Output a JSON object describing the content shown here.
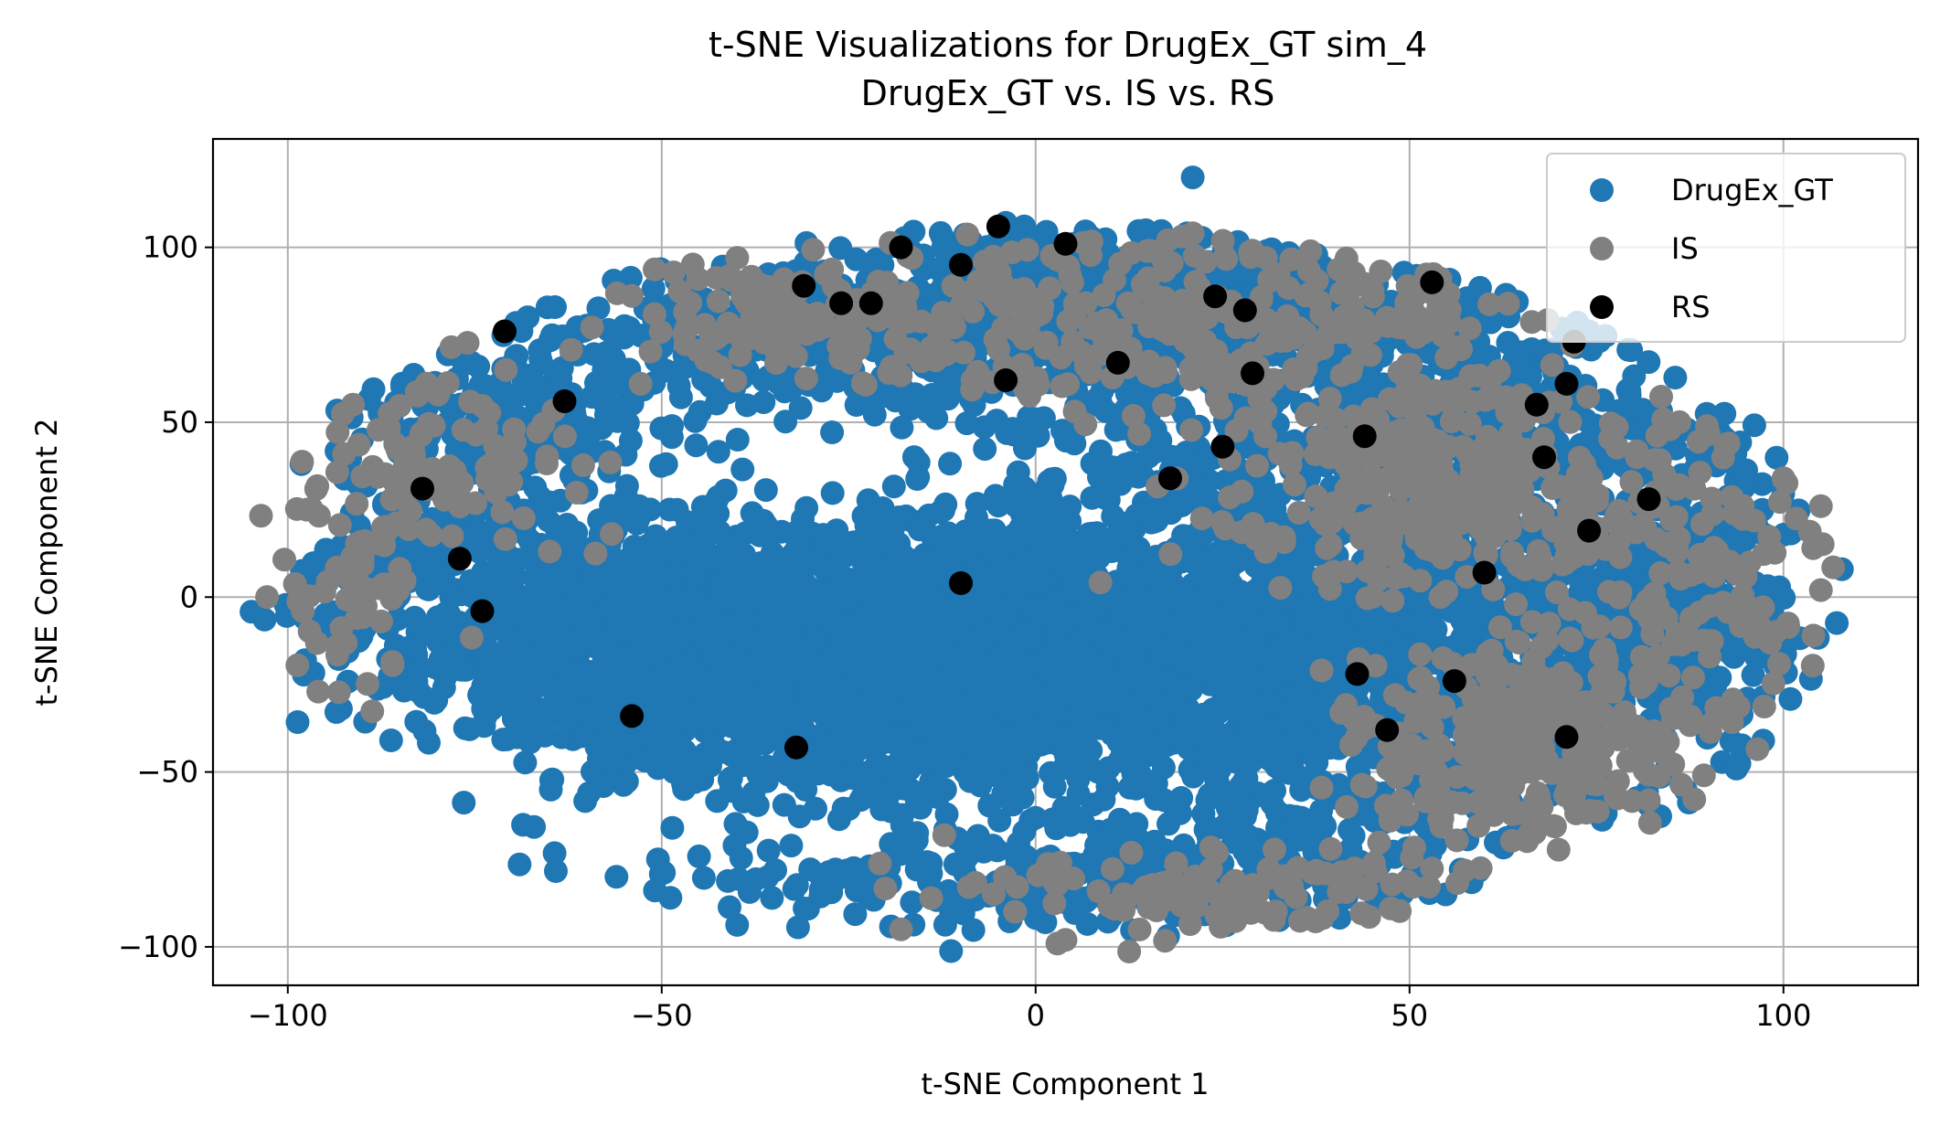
{
  "chart_data": {
    "type": "scatter",
    "title": "t-SNE Visualizations for DrugEx_GT sim_4",
    "subtitle": "DrugEx_GT vs. IS vs. RS",
    "xlabel": "t-SNE Component 1",
    "ylabel": "t-SNE Component 2",
    "xlim": [
      -110,
      118
    ],
    "ylim": [
      -111,
      131
    ],
    "xticks": [
      -100,
      -50,
      0,
      50,
      100
    ],
    "yticks": [
      -100,
      -50,
      0,
      50,
      100
    ],
    "xtick_labels": [
      "−100",
      "−50",
      "0",
      "50",
      "100"
    ],
    "ytick_labels": [
      "−100",
      "−50",
      "0",
      "50",
      "100"
    ],
    "grid": true,
    "legend_position": "top-right",
    "series": [
      {
        "name": "DrugEx_GT",
        "color": "#1f77b4",
        "clusters": [
          {
            "cx": -22,
            "cy": -18,
            "sx": 24,
            "sy": 20,
            "n": 1500
          },
          {
            "cx": 10,
            "cy": -15,
            "sx": 18,
            "sy": 22,
            "n": 900
          },
          {
            "cx": -55,
            "cy": -10,
            "sx": 13,
            "sy": 18,
            "n": 500
          },
          {
            "cx": -80,
            "cy": 5,
            "sx": 10,
            "sy": 20,
            "n": 200
          },
          {
            "cx": 40,
            "cy": -20,
            "sx": 12,
            "sy": 25,
            "n": 600
          },
          {
            "cx": 75,
            "cy": -20,
            "sx": 14,
            "sy": 20,
            "n": 450
          },
          {
            "cx": 88,
            "cy": 15,
            "sx": 8,
            "sy": 20,
            "n": 200
          },
          {
            "cx": 30,
            "cy": 55,
            "sx": 22,
            "sy": 30,
            "n": 550
          },
          {
            "cx": -20,
            "cy": 78,
            "sx": 22,
            "sy": 13,
            "n": 400
          },
          {
            "cx": 10,
            "cy": 88,
            "sx": 20,
            "sy": 12,
            "n": 300
          },
          {
            "cx": -68,
            "cy": 55,
            "sx": 12,
            "sy": 14,
            "n": 180
          },
          {
            "cx": 62,
            "cy": 55,
            "sx": 12,
            "sy": 14,
            "n": 220
          },
          {
            "cx": 10,
            "cy": -80,
            "sx": 28,
            "sy": 8,
            "n": 300
          }
        ],
        "points": [
          [
            21,
            120
          ],
          [
            -4,
            107
          ],
          [
            74,
            76
          ]
        ]
      },
      {
        "name": "IS",
        "color": "#808080",
        "clusters": [
          {
            "cx": 55,
            "cy": 30,
            "sx": 15,
            "sy": 15,
            "n": 330
          },
          {
            "cx": 70,
            "cy": -35,
            "sx": 12,
            "sy": 15,
            "n": 200
          },
          {
            "cx": -30,
            "cy": 82,
            "sx": 14,
            "sy": 10,
            "n": 150
          },
          {
            "cx": 15,
            "cy": 80,
            "sx": 15,
            "sy": 14,
            "n": 180
          },
          {
            "cx": -80,
            "cy": 40,
            "sx": 9,
            "sy": 14,
            "n": 100
          },
          {
            "cx": 25,
            "cy": -85,
            "sx": 18,
            "sy": 6,
            "n": 110
          },
          {
            "cx": 90,
            "cy": 5,
            "sx": 10,
            "sy": 20,
            "n": 100
          },
          {
            "cx": -90,
            "cy": 0,
            "sx": 6,
            "sy": 16,
            "n": 60
          },
          {
            "cx": 45,
            "cy": 75,
            "sx": 14,
            "sy": 14,
            "n": 120
          },
          {
            "cx": 60,
            "cy": -50,
            "sx": 10,
            "sy": 14,
            "n": 100
          }
        ],
        "points": [
          [
            21,
            104
          ],
          [
            -98,
            -4
          ],
          [
            104,
            -11
          ],
          [
            105,
            2
          ],
          [
            105,
            26
          ],
          [
            100,
            34
          ],
          [
            -18,
            -95
          ],
          [
            4,
            -98
          ]
        ]
      },
      {
        "name": "RS",
        "color": "#000000",
        "clusters": [],
        "points": [
          [
            -71,
            76
          ],
          [
            -63,
            56
          ],
          [
            -82,
            31
          ],
          [
            -77,
            11
          ],
          [
            -74,
            -4
          ],
          [
            -54,
            -34
          ],
          [
            -32,
            -43
          ],
          [
            -31,
            89
          ],
          [
            -26,
            84
          ],
          [
            -22,
            84
          ],
          [
            -18,
            100
          ],
          [
            -10,
            95
          ],
          [
            -5,
            106
          ],
          [
            4,
            101
          ],
          [
            -4,
            62
          ],
          [
            11,
            67
          ],
          [
            18,
            34
          ],
          [
            24,
            86
          ],
          [
            25,
            43
          ],
          [
            28,
            82
          ],
          [
            29,
            64
          ],
          [
            44,
            46
          ],
          [
            53,
            90
          ],
          [
            67,
            55
          ],
          [
            68,
            40
          ],
          [
            71,
            61
          ],
          [
            72,
            73
          ],
          [
            74,
            19
          ],
          [
            82,
            28
          ],
          [
            60,
            7
          ],
          [
            43,
            -22
          ],
          [
            47,
            -38
          ],
          [
            56,
            -24
          ],
          [
            71,
            -40
          ],
          [
            -10,
            4
          ]
        ]
      }
    ]
  }
}
